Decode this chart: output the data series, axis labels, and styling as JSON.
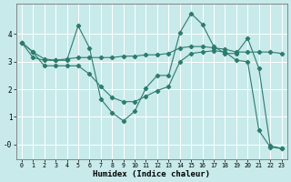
{
  "xlabel": "Humidex (Indice chaleur)",
  "bg_color": "#c8eaea",
  "grid_color": "#ffffff",
  "line_color": "#2d7b6e",
  "ylim": [
    -0.55,
    5.1
  ],
  "xlim": [
    -0.5,
    23.5
  ],
  "yticks": [
    0,
    1,
    2,
    3,
    4
  ],
  "ytick_labels": [
    "-0",
    "1",
    "2",
    "3",
    "4"
  ],
  "xticks": [
    0,
    1,
    2,
    3,
    4,
    5,
    6,
    7,
    8,
    9,
    10,
    11,
    12,
    13,
    14,
    15,
    16,
    17,
    18,
    19,
    20,
    21,
    22,
    23
  ],
  "series1_x": [
    0,
    1,
    2,
    3,
    4,
    5,
    6,
    7,
    8,
    9,
    10,
    11,
    12,
    13,
    14,
    15,
    16,
    17,
    18,
    19,
    20,
    21,
    22,
    23
  ],
  "series1_y": [
    3.7,
    3.35,
    3.1,
    3.05,
    3.05,
    4.3,
    3.5,
    1.65,
    1.15,
    0.85,
    1.2,
    2.05,
    2.5,
    2.5,
    4.05,
    4.75,
    4.35,
    3.55,
    3.3,
    3.3,
    3.85,
    2.75,
    -0.05,
    -0.15
  ],
  "series2_x": [
    0,
    1,
    2,
    3,
    4,
    5,
    6,
    7,
    8,
    9,
    10,
    11,
    12,
    13,
    14,
    15,
    16,
    17,
    18,
    19,
    20,
    21,
    22,
    23
  ],
  "series2_y": [
    3.7,
    3.15,
    3.05,
    3.05,
    3.1,
    3.15,
    3.15,
    3.15,
    3.15,
    3.2,
    3.2,
    3.25,
    3.25,
    3.3,
    3.5,
    3.55,
    3.55,
    3.5,
    3.45,
    3.35,
    3.35,
    3.35,
    3.35,
    3.3
  ],
  "series3_x": [
    0,
    1,
    2,
    3,
    4,
    5,
    6,
    7,
    8,
    9,
    10,
    11,
    12,
    13,
    14,
    15,
    16,
    17,
    18,
    19,
    20,
    21,
    22,
    23
  ],
  "series3_y": [
    3.7,
    3.35,
    2.85,
    2.85,
    2.85,
    2.85,
    2.55,
    2.1,
    1.7,
    1.55,
    1.55,
    1.75,
    1.95,
    2.1,
    3.0,
    3.3,
    3.35,
    3.4,
    3.35,
    3.05,
    3.0,
    0.5,
    -0.1,
    -0.15
  ]
}
